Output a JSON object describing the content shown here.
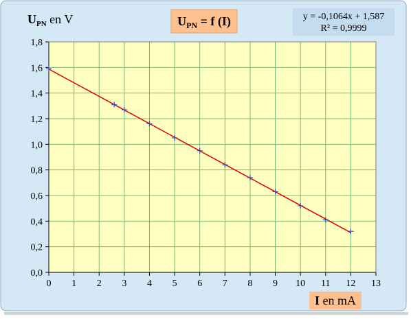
{
  "chart_data": {
    "type": "scatter",
    "title": {
      "main": "U",
      "sub": "PN",
      "rest": " = f (I)"
    },
    "y_label": {
      "main": "U",
      "sub": "PN",
      "rest": " en V"
    },
    "x_label": {
      "main": "I",
      "rest": " en mA"
    },
    "equation": "y = -0,1064x + 1,587",
    "r_squared": "R² = 0,9999",
    "x": [
      0,
      2.6,
      3,
      4,
      5,
      6,
      7,
      8,
      9,
      10,
      11,
      12
    ],
    "series": [
      {
        "color": "#3050c0",
        "values": [
          1.59,
          1.31,
          1.27,
          1.16,
          1.05,
          0.95,
          0.84,
          0.74,
          0.63,
          0.52,
          0.41,
          0.32
        ]
      }
    ],
    "trendline": {
      "color": "#e00000",
      "x": [
        0,
        12
      ],
      "values": [
        1.587,
        0.3102
      ]
    },
    "xlim": [
      0,
      13
    ],
    "ylim": [
      0,
      1.8
    ],
    "xticks": [
      0,
      1,
      2,
      3,
      4,
      5,
      6,
      7,
      8,
      9,
      10,
      11,
      12,
      13
    ],
    "yticks": [
      {
        "value": 0,
        "label": "0,0"
      },
      {
        "value": 0.2,
        "label": "0,2"
      },
      {
        "value": 0.4,
        "label": "0,4"
      },
      {
        "value": 0.6,
        "label": "0,6"
      },
      {
        "value": 0.8,
        "label": "0,8"
      },
      {
        "value": 1.0,
        "label": "1,0"
      },
      {
        "value": 1.2,
        "label": "1,2"
      },
      {
        "value": 1.4,
        "label": "1,4"
      },
      {
        "value": 1.6,
        "label": "1,6"
      },
      {
        "value": 1.8,
        "label": "1,8"
      }
    ],
    "grid": true,
    "plot_color": "#ffffc0",
    "grid_color": "#78b878"
  }
}
